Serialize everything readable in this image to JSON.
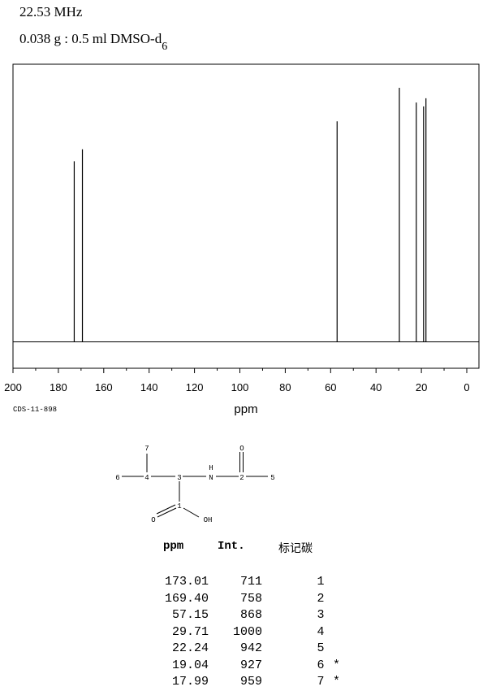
{
  "header": {
    "frequency": "22.53 MHz",
    "sample_prefix": "0.038 g : 0.5 ml DMSO-d",
    "sample_subscript": "6"
  },
  "chart_data": {
    "type": "line",
    "xlabel": "ppm",
    "xlim": [
      200,
      0
    ],
    "ylim": [
      0,
      1000
    ],
    "x_ticks": [
      200,
      180,
      160,
      140,
      120,
      100,
      80,
      60,
      40,
      20,
      0
    ],
    "peaks": [
      {
        "x": 173.01,
        "y": 711
      },
      {
        "x": 169.4,
        "y": 758
      },
      {
        "x": 57.15,
        "y": 868
      },
      {
        "x": 29.71,
        "y": 1000
      },
      {
        "x": 22.24,
        "y": 942
      },
      {
        "x": 19.04,
        "y": 927
      },
      {
        "x": 17.99,
        "y": 959
      }
    ]
  },
  "code_label": "CDS-11-898",
  "structure": {
    "atoms": [
      "7",
      "6",
      "4",
      "3",
      "N",
      "H",
      "2",
      "O",
      "5",
      "1",
      "O",
      "OH"
    ]
  },
  "table": {
    "headers": [
      "ppm",
      "Int.",
      "标记碳"
    ],
    "rows": [
      {
        "ppm": "173.01",
        "int": "711",
        "carbon": "1",
        "mark": ""
      },
      {
        "ppm": "169.40",
        "int": "758",
        "carbon": "2",
        "mark": ""
      },
      {
        "ppm": "57.15",
        "int": "868",
        "carbon": "3",
        "mark": ""
      },
      {
        "ppm": "29.71",
        "int": "1000",
        "carbon": "4",
        "mark": ""
      },
      {
        "ppm": "22.24",
        "int": "942",
        "carbon": "5",
        "mark": ""
      },
      {
        "ppm": "19.04",
        "int": "927",
        "carbon": "6",
        "mark": "*"
      },
      {
        "ppm": "17.99",
        "int": "959",
        "carbon": "7",
        "mark": "*"
      }
    ]
  }
}
